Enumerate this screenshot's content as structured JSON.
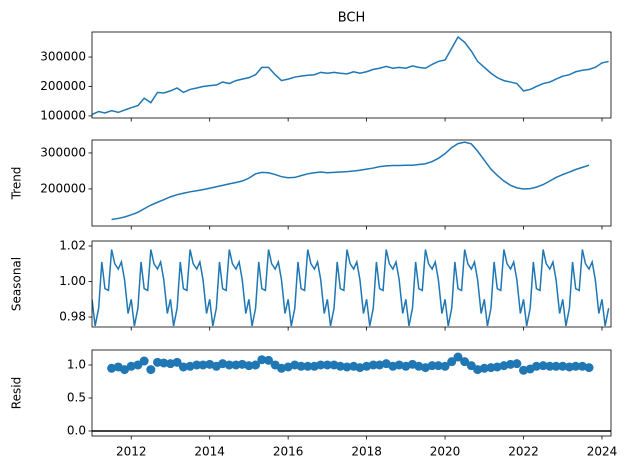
{
  "chart_data": [
    {
      "type": "line",
      "title": "BCH",
      "color": "#1f77b4",
      "x": [
        2011,
        2011.17,
        2011.33,
        2011.5,
        2011.67,
        2011.83,
        2012,
        2012.17,
        2012.33,
        2012.5,
        2012.67,
        2012.83,
        2013,
        2013.17,
        2013.33,
        2013.5,
        2013.67,
        2013.83,
        2014,
        2014.17,
        2014.33,
        2014.5,
        2014.67,
        2014.83,
        2015,
        2015.17,
        2015.33,
        2015.5,
        2015.67,
        2015.83,
        2016,
        2016.17,
        2016.33,
        2016.5,
        2016.67,
        2016.83,
        2017,
        2017.17,
        2017.33,
        2017.5,
        2017.67,
        2017.83,
        2018,
        2018.17,
        2018.33,
        2018.5,
        2018.67,
        2018.83,
        2019,
        2019.17,
        2019.33,
        2019.5,
        2019.67,
        2019.83,
        2020,
        2020.17,
        2020.33,
        2020.5,
        2020.67,
        2020.83,
        2021,
        2021.17,
        2021.33,
        2021.5,
        2021.67,
        2021.83,
        2022,
        2022.17,
        2022.33,
        2022.5,
        2022.67,
        2022.83,
        2023,
        2023.17,
        2023.33,
        2023.5,
        2023.67,
        2023.83,
        2024,
        2024.17
      ],
      "values": [
        105000,
        115000,
        110000,
        118000,
        112000,
        120000,
        128000,
        135000,
        160000,
        145000,
        180000,
        178000,
        185000,
        195000,
        180000,
        190000,
        195000,
        200000,
        203000,
        205000,
        215000,
        210000,
        220000,
        225000,
        230000,
        240000,
        265000,
        265000,
        240000,
        220000,
        225000,
        232000,
        235000,
        238000,
        240000,
        248000,
        245000,
        248000,
        245000,
        243000,
        250000,
        245000,
        250000,
        258000,
        262000,
        268000,
        262000,
        265000,
        262000,
        270000,
        265000,
        262000,
        275000,
        285000,
        290000,
        330000,
        368000,
        350000,
        320000,
        285000,
        265000,
        245000,
        230000,
        220000,
        215000,
        210000,
        185000,
        190000,
        200000,
        210000,
        215000,
        225000,
        235000,
        240000,
        250000,
        255000,
        258000,
        265000,
        280000,
        285000
      ],
      "xlim": [
        2011.0,
        2024.23
      ],
      "xticks": [
        2012,
        2014,
        2016,
        2018,
        2020,
        2022,
        2024
      ],
      "ylim": [
        93000,
        385000
      ],
      "yticks": [
        100000,
        200000,
        300000
      ]
    },
    {
      "type": "line",
      "ylabel": "Trend",
      "color": "#1f77b4",
      "x": [
        2011,
        2011.17,
        2011.33,
        2011.5,
        2011.67,
        2011.83,
        2012,
        2012.17,
        2012.33,
        2012.5,
        2012.67,
        2012.83,
        2013,
        2013.17,
        2013.33,
        2013.5,
        2013.67,
        2013.83,
        2014,
        2014.17,
        2014.33,
        2014.5,
        2014.67,
        2014.83,
        2015,
        2015.17,
        2015.33,
        2015.5,
        2015.67,
        2015.83,
        2016,
        2016.17,
        2016.33,
        2016.5,
        2016.67,
        2016.83,
        2017,
        2017.17,
        2017.33,
        2017.5,
        2017.67,
        2017.83,
        2018,
        2018.17,
        2018.33,
        2018.5,
        2018.67,
        2018.83,
        2019,
        2019.17,
        2019.33,
        2019.5,
        2019.67,
        2019.83,
        2020,
        2020.17,
        2020.33,
        2020.5,
        2020.67,
        2020.83,
        2021,
        2021.17,
        2021.33,
        2021.5,
        2021.67,
        2021.83,
        2022,
        2022.17,
        2022.33,
        2022.5,
        2022.67,
        2022.83,
        2023,
        2023.17,
        2023.33,
        2023.5,
        2023.67,
        2023.83,
        2024,
        2024.17
      ],
      "values": [
        null,
        null,
        null,
        115000,
        118000,
        122000,
        128000,
        135000,
        145000,
        155000,
        163000,
        170000,
        178000,
        184000,
        188000,
        192000,
        195000,
        198000,
        202000,
        206000,
        210000,
        214000,
        218000,
        222000,
        230000,
        242000,
        246000,
        245000,
        240000,
        234000,
        231000,
        232000,
        237000,
        242000,
        245000,
        247000,
        245000,
        246000,
        247000,
        248000,
        250000,
        252000,
        255000,
        258000,
        262000,
        264000,
        265000,
        265000,
        266000,
        266000,
        268000,
        270000,
        276000,
        285000,
        298000,
        315000,
        326000,
        330000,
        325000,
        305000,
        280000,
        255000,
        238000,
        222000,
        210000,
        203000,
        200000,
        201000,
        205000,
        212000,
        222000,
        232000,
        240000,
        247000,
        254000,
        260000,
        266000,
        null,
        null,
        null
      ],
      "xlim": [
        2011.0,
        2024.23
      ],
      "xticks": [
        2012,
        2014,
        2016,
        2018,
        2020,
        2022,
        2024
      ],
      "ylim": [
        97000,
        336000
      ],
      "yticks": [
        200000,
        300000
      ]
    },
    {
      "type": "line",
      "ylabel": "Seasonal",
      "color": "#1f77b4",
      "x": [
        2011,
        2011.08,
        2011.17,
        2011.25,
        2011.33,
        2011.42,
        2011.5,
        2011.58,
        2011.67,
        2011.75,
        2011.83,
        2011.92,
        2012,
        2012.08,
        2012.17,
        2012.25,
        2012.33,
        2012.42,
        2012.5,
        2012.58,
        2012.67,
        2012.75,
        2012.83,
        2012.92,
        2013,
        2013.08,
        2013.17,
        2013.25,
        2013.33,
        2013.42,
        2013.5,
        2013.58,
        2013.67,
        2013.75,
        2013.83,
        2013.92,
        2014,
        2014.08,
        2014.17,
        2014.25,
        2014.33,
        2014.42,
        2014.5,
        2014.58,
        2014.67,
        2014.75,
        2014.83,
        2014.92,
        2015,
        2015.08,
        2015.17,
        2015.25,
        2015.33,
        2015.42,
        2015.5,
        2015.58,
        2015.67,
        2015.75,
        2015.83,
        2015.92,
        2016,
        2016.08,
        2016.17,
        2016.25,
        2016.33,
        2016.42,
        2016.5,
        2016.58,
        2016.67,
        2016.75,
        2016.83,
        2016.92,
        2017,
        2017.08,
        2017.17,
        2017.25,
        2017.33,
        2017.42,
        2017.5,
        2017.58,
        2017.67,
        2017.75,
        2017.83,
        2017.92,
        2018,
        2018.08,
        2018.17,
        2018.25,
        2018.33,
        2018.42,
        2018.5,
        2018.58,
        2018.67,
        2018.75,
        2018.83,
        2018.92,
        2019,
        2019.08,
        2019.17,
        2019.25,
        2019.33,
        2019.42,
        2019.5,
        2019.58,
        2019.67,
        2019.75,
        2019.83,
        2019.92,
        2020,
        2020.08,
        2020.17,
        2020.25,
        2020.33,
        2020.42,
        2020.5,
        2020.58,
        2020.67,
        2020.75,
        2020.83,
        2020.92,
        2021,
        2021.08,
        2021.17,
        2021.25,
        2021.33,
        2021.42,
        2021.5,
        2021.58,
        2021.67,
        2021.75,
        2021.83,
        2021.92,
        2022,
        2022.08,
        2022.17,
        2022.25,
        2022.33,
        2022.42,
        2022.5,
        2022.58,
        2022.67,
        2022.75,
        2022.83,
        2022.92,
        2023,
        2023.08,
        2023.17,
        2023.25,
        2023.33,
        2023.42,
        2023.5,
        2023.58,
        2023.67,
        2023.75,
        2023.83,
        2023.92,
        2024,
        2024.08,
        2024.17
      ],
      "values": [
        0.99,
        0.975,
        0.985,
        1.011,
        0.996,
        0.995,
        1.018,
        1.01,
        1.007,
        1.011,
        1.001,
        0.982,
        0.99,
        0.975,
        0.985,
        1.011,
        0.996,
        0.995,
        1.018,
        1.01,
        1.007,
        1.011,
        1.001,
        0.982,
        0.99,
        0.975,
        0.985,
        1.011,
        0.996,
        0.995,
        1.018,
        1.01,
        1.007,
        1.011,
        1.001,
        0.982,
        0.99,
        0.975,
        0.985,
        1.011,
        0.996,
        0.995,
        1.018,
        1.01,
        1.007,
        1.011,
        1.001,
        0.982,
        0.99,
        0.975,
        0.985,
        1.011,
        0.996,
        0.995,
        1.018,
        1.01,
        1.007,
        1.011,
        1.001,
        0.982,
        0.99,
        0.975,
        0.985,
        1.011,
        0.996,
        0.995,
        1.018,
        1.01,
        1.007,
        1.011,
        1.001,
        0.982,
        0.99,
        0.975,
        0.985,
        1.011,
        0.996,
        0.995,
        1.018,
        1.01,
        1.007,
        1.011,
        1.001,
        0.982,
        0.99,
        0.975,
        0.985,
        1.011,
        0.996,
        0.995,
        1.018,
        1.01,
        1.007,
        1.011,
        1.001,
        0.982,
        0.99,
        0.975,
        0.985,
        1.011,
        0.996,
        0.995,
        1.018,
        1.01,
        1.007,
        1.011,
        1.001,
        0.982,
        0.99,
        0.975,
        0.985,
        1.011,
        0.996,
        0.995,
        1.018,
        1.01,
        1.007,
        1.011,
        1.001,
        0.982,
        0.99,
        0.975,
        0.985,
        1.011,
        0.996,
        0.995,
        1.018,
        1.01,
        1.007,
        1.011,
        1.001,
        0.982,
        0.99,
        0.975,
        0.985,
        1.011,
        0.996,
        0.995,
        1.018,
        1.01,
        1.007,
        1.011,
        1.001,
        0.982,
        0.99,
        0.975,
        0.985,
        1.011,
        0.996,
        0.995,
        1.018,
        1.01,
        1.007,
        1.011,
        1.001,
        0.982,
        0.99,
        0.975,
        0.985
      ],
      "xlim": [
        2011.0,
        2024.23
      ],
      "xticks": [
        2012,
        2014,
        2016,
        2018,
        2020,
        2022,
        2024
      ],
      "ylim": [
        0.9744,
        1.0228
      ],
      "yticks": [
        0.98,
        {
          "value": 1.0,
          "label": "1.00"
        },
        1.02
      ]
    },
    {
      "type": "scatter",
      "ylabel": "Resid",
      "color": "#1f77b4",
      "hline": 0,
      "x": [
        2011,
        2011.17,
        2011.33,
        2011.5,
        2011.67,
        2011.83,
        2012,
        2012.17,
        2012.33,
        2012.5,
        2012.67,
        2012.83,
        2013,
        2013.17,
        2013.33,
        2013.5,
        2013.67,
        2013.83,
        2014,
        2014.17,
        2014.33,
        2014.5,
        2014.67,
        2014.83,
        2015,
        2015.17,
        2015.33,
        2015.5,
        2015.67,
        2015.83,
        2016,
        2016.17,
        2016.33,
        2016.5,
        2016.67,
        2016.83,
        2017,
        2017.17,
        2017.33,
        2017.5,
        2017.67,
        2017.83,
        2018,
        2018.17,
        2018.33,
        2018.5,
        2018.67,
        2018.83,
        2019,
        2019.17,
        2019.33,
        2019.5,
        2019.67,
        2019.83,
        2020,
        2020.17,
        2020.33,
        2020.5,
        2020.67,
        2020.83,
        2021,
        2021.17,
        2021.33,
        2021.5,
        2021.67,
        2021.83,
        2022,
        2022.17,
        2022.33,
        2022.5,
        2022.67,
        2022.83,
        2023,
        2023.17,
        2023.33,
        2023.5,
        2023.67,
        2023.83,
        2024,
        2024.17
      ],
      "values": [
        null,
        null,
        null,
        0.95,
        0.97,
        0.93,
        0.98,
        1.0,
        1.06,
        0.93,
        1.04,
        1.03,
        1.02,
        1.04,
        0.97,
        0.98,
        1.0,
        1.0,
        1.01,
        0.98,
        1.02,
        1.0,
        1.0,
        1.01,
        0.99,
        1.0,
        1.08,
        1.07,
        1.0,
        0.95,
        0.97,
        1.0,
        0.98,
        0.98,
        0.98,
        1.0,
        1.0,
        1.0,
        0.98,
        0.97,
        0.98,
        0.96,
        0.98,
        1.0,
        1.0,
        1.02,
        0.98,
        1.0,
        0.98,
        1.01,
        0.98,
        0.96,
        0.99,
        0.99,
        0.98,
        1.05,
        1.12,
        1.05,
        0.99,
        0.93,
        0.95,
        0.96,
        0.97,
        0.99,
        1.01,
        1.02,
        0.92,
        0.94,
        0.98,
        0.99,
        0.98,
        0.98,
        0.98,
        0.97,
        0.98,
        0.98,
        0.96,
        null,
        null,
        null
      ],
      "xlim": [
        2011.0,
        2024.23
      ],
      "xticks": [
        2012,
        2014,
        2016,
        2018,
        2020,
        2022,
        2024
      ],
      "ylim": [
        -0.076,
        1.227
      ],
      "yticks": [
        {
          "value": 0,
          "label": "0.0"
        },
        0.5,
        {
          "value": 1,
          "label": "1.0"
        }
      ]
    }
  ]
}
